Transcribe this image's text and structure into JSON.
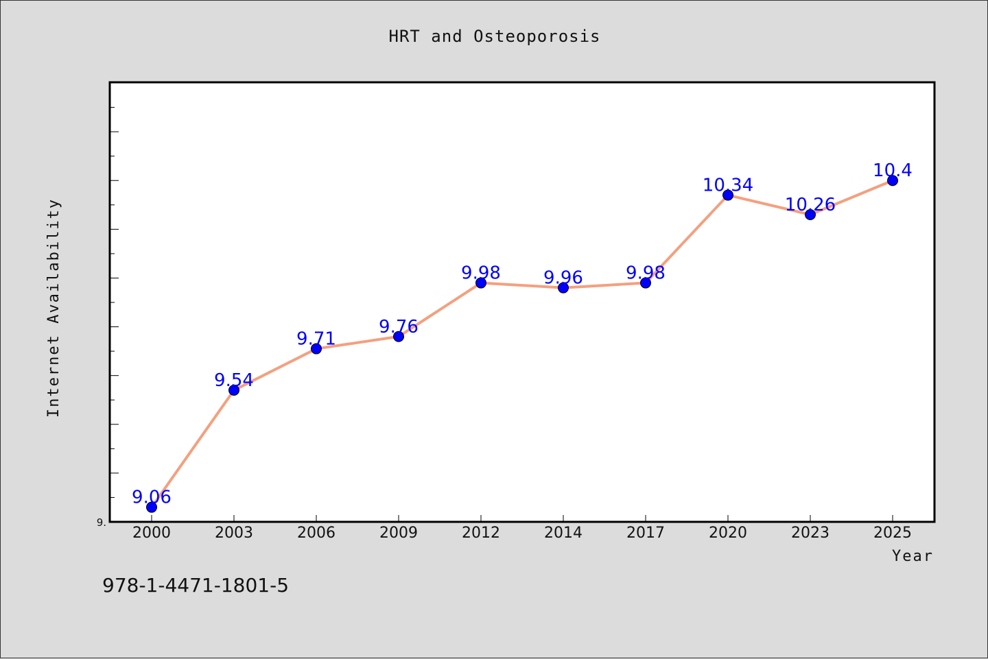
{
  "chart_data": {
    "type": "line",
    "title": "HRT and Osteoporosis",
    "xlabel": "Year",
    "ylabel": "Internet Availability",
    "categories": [
      "2000",
      "2003",
      "2006",
      "2009",
      "2012",
      "2014",
      "2017",
      "2020",
      "2023",
      "2025"
    ],
    "series": [
      {
        "values": [
          9.06,
          9.54,
          9.71,
          9.76,
          9.98,
          9.96,
          9.98,
          10.34,
          10.26,
          10.4
        ]
      }
    ],
    "data_labels": [
      "9.06",
      "9.54",
      "9.71",
      "9.76",
      "9.98",
      "9.96",
      "9.98",
      "10.34",
      "10.26",
      "10.4"
    ],
    "y_tick_label": "9.",
    "ylim": [
      9.0,
      10.8
    ],
    "grid": false,
    "legend": "none",
    "line_color": "#f4a07f",
    "marker_color": "#0000ff",
    "label_color": "#0000ff",
    "background_color": "#dcdcdc",
    "plot_background_color": "#ffffff"
  },
  "footer": {
    "isbn": "978-1-4471-1801-5"
  }
}
